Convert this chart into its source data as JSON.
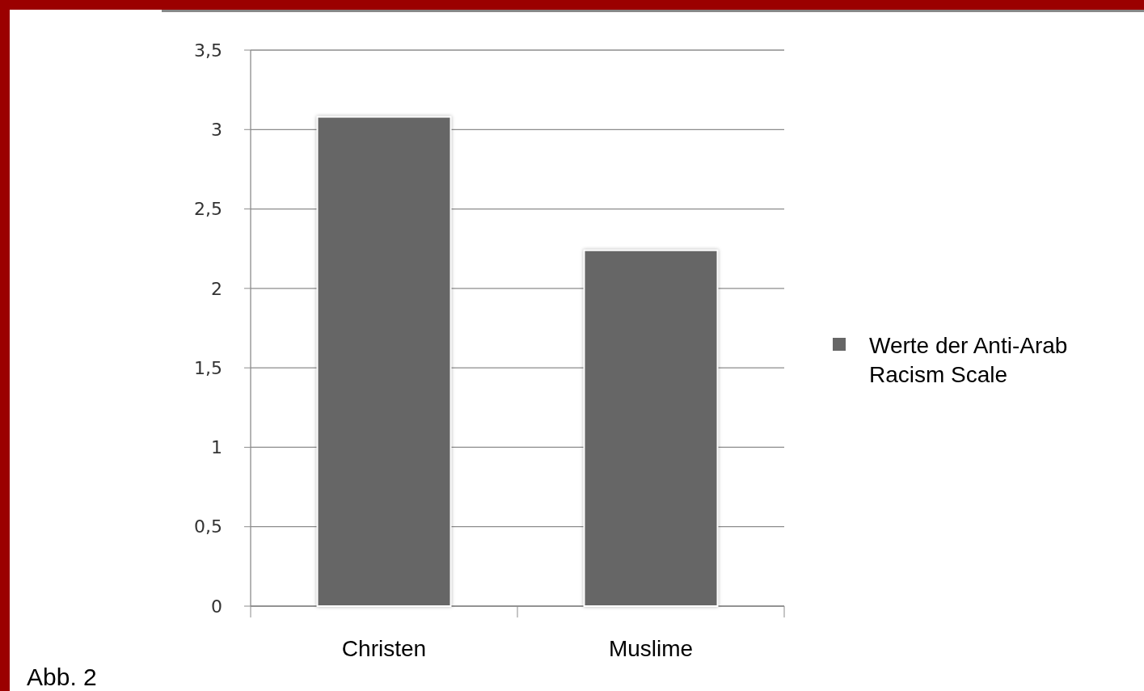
{
  "chart_data": {
    "type": "bar",
    "categories": [
      "Christen",
      "Muslime"
    ],
    "series": [
      {
        "name": "Werte der Anti-Arab Racism Scale",
        "color": "#666666",
        "values": [
          3.08,
          2.24
        ]
      }
    ],
    "ylim": [
      0,
      3.5
    ],
    "yticks": [
      {
        "value": 0,
        "label": "0"
      },
      {
        "value": 0.5,
        "label": "0,5"
      },
      {
        "value": 1,
        "label": "1"
      },
      {
        "value": 1.5,
        "label": "1,5"
      },
      {
        "value": 2,
        "label": "2"
      },
      {
        "value": 2.5,
        "label": "2,5"
      },
      {
        "value": 3,
        "label": "3"
      },
      {
        "value": 3.5,
        "label": "3,5"
      }
    ],
    "grid": "y",
    "legend": "right",
    "annotations": [
      "Abb. 2"
    ]
  }
}
